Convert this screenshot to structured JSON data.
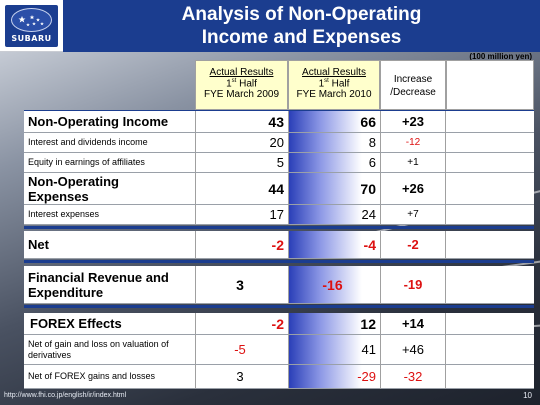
{
  "header": {
    "logo_text": "SUBARU",
    "title_line1": "Analysis of Non-Operating",
    "title_line2": "Income and Expenses"
  },
  "unit_note": "(100 million yen)",
  "columns": {
    "col1_l1": "Actual Results",
    "col1_l2": "1",
    "col1_sup": "st",
    "col1_l2b": " Half",
    "col1_l3": "FYE March 2009",
    "col2_l1": "Actual Results",
    "col2_l2": "1",
    "col2_sup": "st",
    "col2_l2b": " Half",
    "col2_l3": "FYE March 2010",
    "change_l1": "Increase",
    "change_l2": "/Decrease"
  },
  "rows": [
    {
      "label": "Non-Operating Income",
      "v1": "43",
      "v2": "66",
      "chg": "+23"
    },
    {
      "label": "Interest and dividends income",
      "v1": "20",
      "v2": "8",
      "chg": "-12"
    },
    {
      "label": "Equity in earnings of affiliates",
      "v1": "5",
      "v2": "6",
      "chg": "+1"
    },
    {
      "label": "Non-Operating Expenses",
      "v1": "44",
      "v2": "70",
      "chg": "+26"
    },
    {
      "label": "Interest expenses",
      "v1": "17",
      "v2": "24",
      "chg": "+7"
    },
    {
      "label": "Net",
      "v1": "-2",
      "v2": "-4",
      "chg": "-2"
    },
    {
      "label": "Financial Revenue and Expenditure",
      "v1": "3",
      "v2": "-16",
      "chg": "-19"
    },
    {
      "label": "FOREX Effects",
      "v1": "-2",
      "v2": "12",
      "chg": "+14"
    },
    {
      "label": "Net of gain and loss on valuation of derivatives",
      "v1": "-5",
      "v2": "41",
      "chg": "+46"
    },
    {
      "label": "Net of FOREX gains and losses",
      "v1": "3",
      "v2": "-29",
      "chg": "-32"
    }
  ],
  "footer": {
    "url": "http://www.fhi.co.jp/english/ir/index.html",
    "page": "10"
  },
  "colors": {
    "brand_blue": "#1b3d8f",
    "negative_red": "#dd1111",
    "header_highlight": "#ffffcc"
  }
}
